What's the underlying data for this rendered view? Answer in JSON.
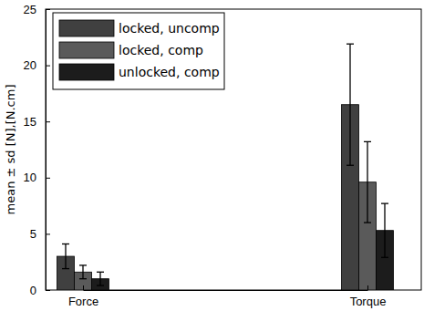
{
  "chart_data": {
    "type": "bar",
    "y_label": "mean ± sd [N],[N.cm]",
    "categories": [
      "Force",
      "Torque"
    ],
    "series": [
      {
        "name": "locked, uncomp",
        "color": "#404040",
        "values": [
          3.0,
          16.5
        ],
        "errors": [
          1.1,
          5.4
        ]
      },
      {
        "name": "locked, comp",
        "color": "#5a5a5a",
        "values": [
          1.6,
          9.6
        ],
        "errors": [
          0.6,
          3.6
        ]
      },
      {
        "name": "unlocked, comp",
        "color": "#1c1c1c",
        "values": [
          1.0,
          5.3
        ],
        "errors": [
          0.6,
          2.4
        ]
      }
    ],
    "ylim": [
      0,
      25
    ],
    "yticks": [
      0,
      5,
      10,
      15,
      20,
      25
    ],
    "grid": false,
    "legend": "upper left"
  }
}
